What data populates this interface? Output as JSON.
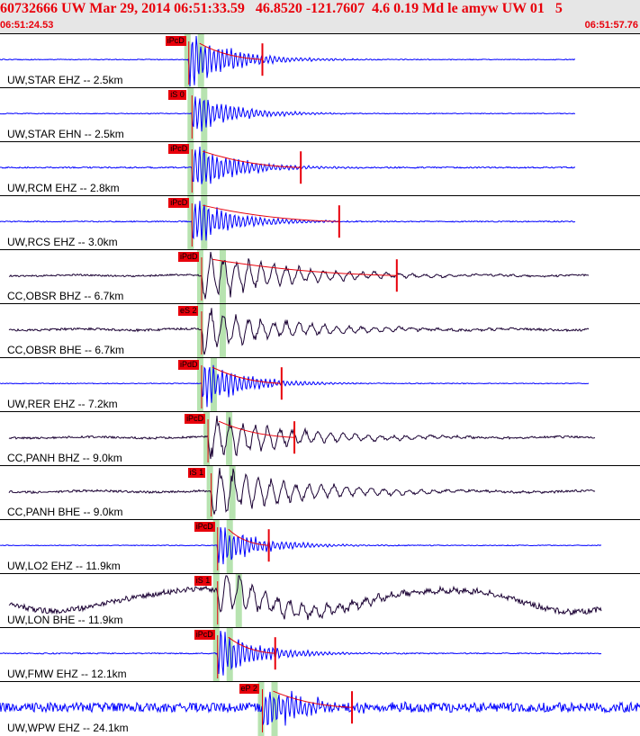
{
  "header": {
    "title": "60732666 UW Mar 29, 2014 06:51:33.59   46.8520 -121.7607  4.6 0.19 Md le amyw UW 01   5",
    "start_time": "06:51:24.53",
    "end_time": "06:51:57.76"
  },
  "colors": {
    "header_bg": "#e6e6e6",
    "header_text": "#e8000b",
    "short_period_trace": "#0000ff",
    "broadband_trace": "#1a0033",
    "pick_box": "#e8000b",
    "window_band": "#b7e3b0",
    "coda_curve": "#e8000b"
  },
  "traces": [
    {
      "label": "UW,STAR EHZ -- 2.5km",
      "pick": "iPcD",
      "kind": "short-period",
      "onset": 0.295,
      "amp": 1.0,
      "length": 0.9,
      "tail": 0.41,
      "noise": 0.03
    },
    {
      "label": "UW,STAR EHN -- 2.5km",
      "pick": "iS 0",
      "kind": "short-period",
      "onset": 0.3,
      "amp": 0.7,
      "length": 0.9,
      "tail": null,
      "noise": 0.03
    },
    {
      "label": "UW,RCM EHZ -- 2.8km",
      "pick": "iPcD",
      "kind": "short-period",
      "onset": 0.3,
      "amp": 0.9,
      "length": 0.9,
      "tail": 0.47,
      "noise": 0.05
    },
    {
      "label": "UW,RCS EHZ -- 3.0km",
      "pick": "iPcD",
      "kind": "short-period",
      "onset": 0.3,
      "amp": 0.8,
      "length": 0.9,
      "tail": 0.53,
      "noise": 0.04
    },
    {
      "label": "CC,OBSR BHZ -- 6.7km",
      "pick": "iPdD",
      "kind": "broadband",
      "onset": 0.315,
      "amp": 0.9,
      "length": 0.92,
      "tail": 0.62,
      "noise": 0.06
    },
    {
      "label": "CC,OBSR BHE -- 6.7km",
      "pick": "eS 2",
      "kind": "broadband",
      "onset": 0.315,
      "amp": 0.8,
      "length": 0.92,
      "tail": null,
      "noise": 0.08
    },
    {
      "label": "UW,RER EHZ -- 7.2km",
      "pick": "iPdD",
      "kind": "short-period",
      "onset": 0.315,
      "amp": 0.8,
      "length": 0.92,
      "tail": 0.44,
      "noise": 0.03
    },
    {
      "label": "CC,PANH BHZ -- 9.0km",
      "pick": "iPcD",
      "kind": "broadband",
      "onset": 0.325,
      "amp": 0.8,
      "length": 0.93,
      "tail": 0.46,
      "noise": 0.07
    },
    {
      "label": "CC,PANH BHE -- 9.0km",
      "pick": "iS 1",
      "kind": "broadband",
      "onset": 0.33,
      "amp": 0.9,
      "length": 0.93,
      "tail": null,
      "noise": 0.08
    },
    {
      "label": "UW,LO2 EHZ -- 11.9km",
      "pick": "iPcD",
      "kind": "short-period",
      "onset": 0.34,
      "amp": 0.7,
      "length": 0.94,
      "tail": 0.42,
      "noise": 0.03
    },
    {
      "label": "UW,LON BHE -- 11.9km",
      "pick": "iS 1",
      "kind": "broadband",
      "onset": 0.34,
      "amp": 0.8,
      "length": 0.94,
      "tail": null,
      "noise": 0.2
    },
    {
      "label": "UW,FMW EHZ -- 12.1km",
      "pick": "iPcD",
      "kind": "short-period",
      "onset": 0.34,
      "amp": 0.8,
      "length": 0.94,
      "tail": 0.43,
      "noise": 0.04
    },
    {
      "label": "UW,WPW EHZ -- 24.1km",
      "pick": "eP 2",
      "kind": "short-period",
      "onset": 0.41,
      "amp": 0.8,
      "length": 1.0,
      "tail": 0.55,
      "noise": 0.35
    }
  ]
}
